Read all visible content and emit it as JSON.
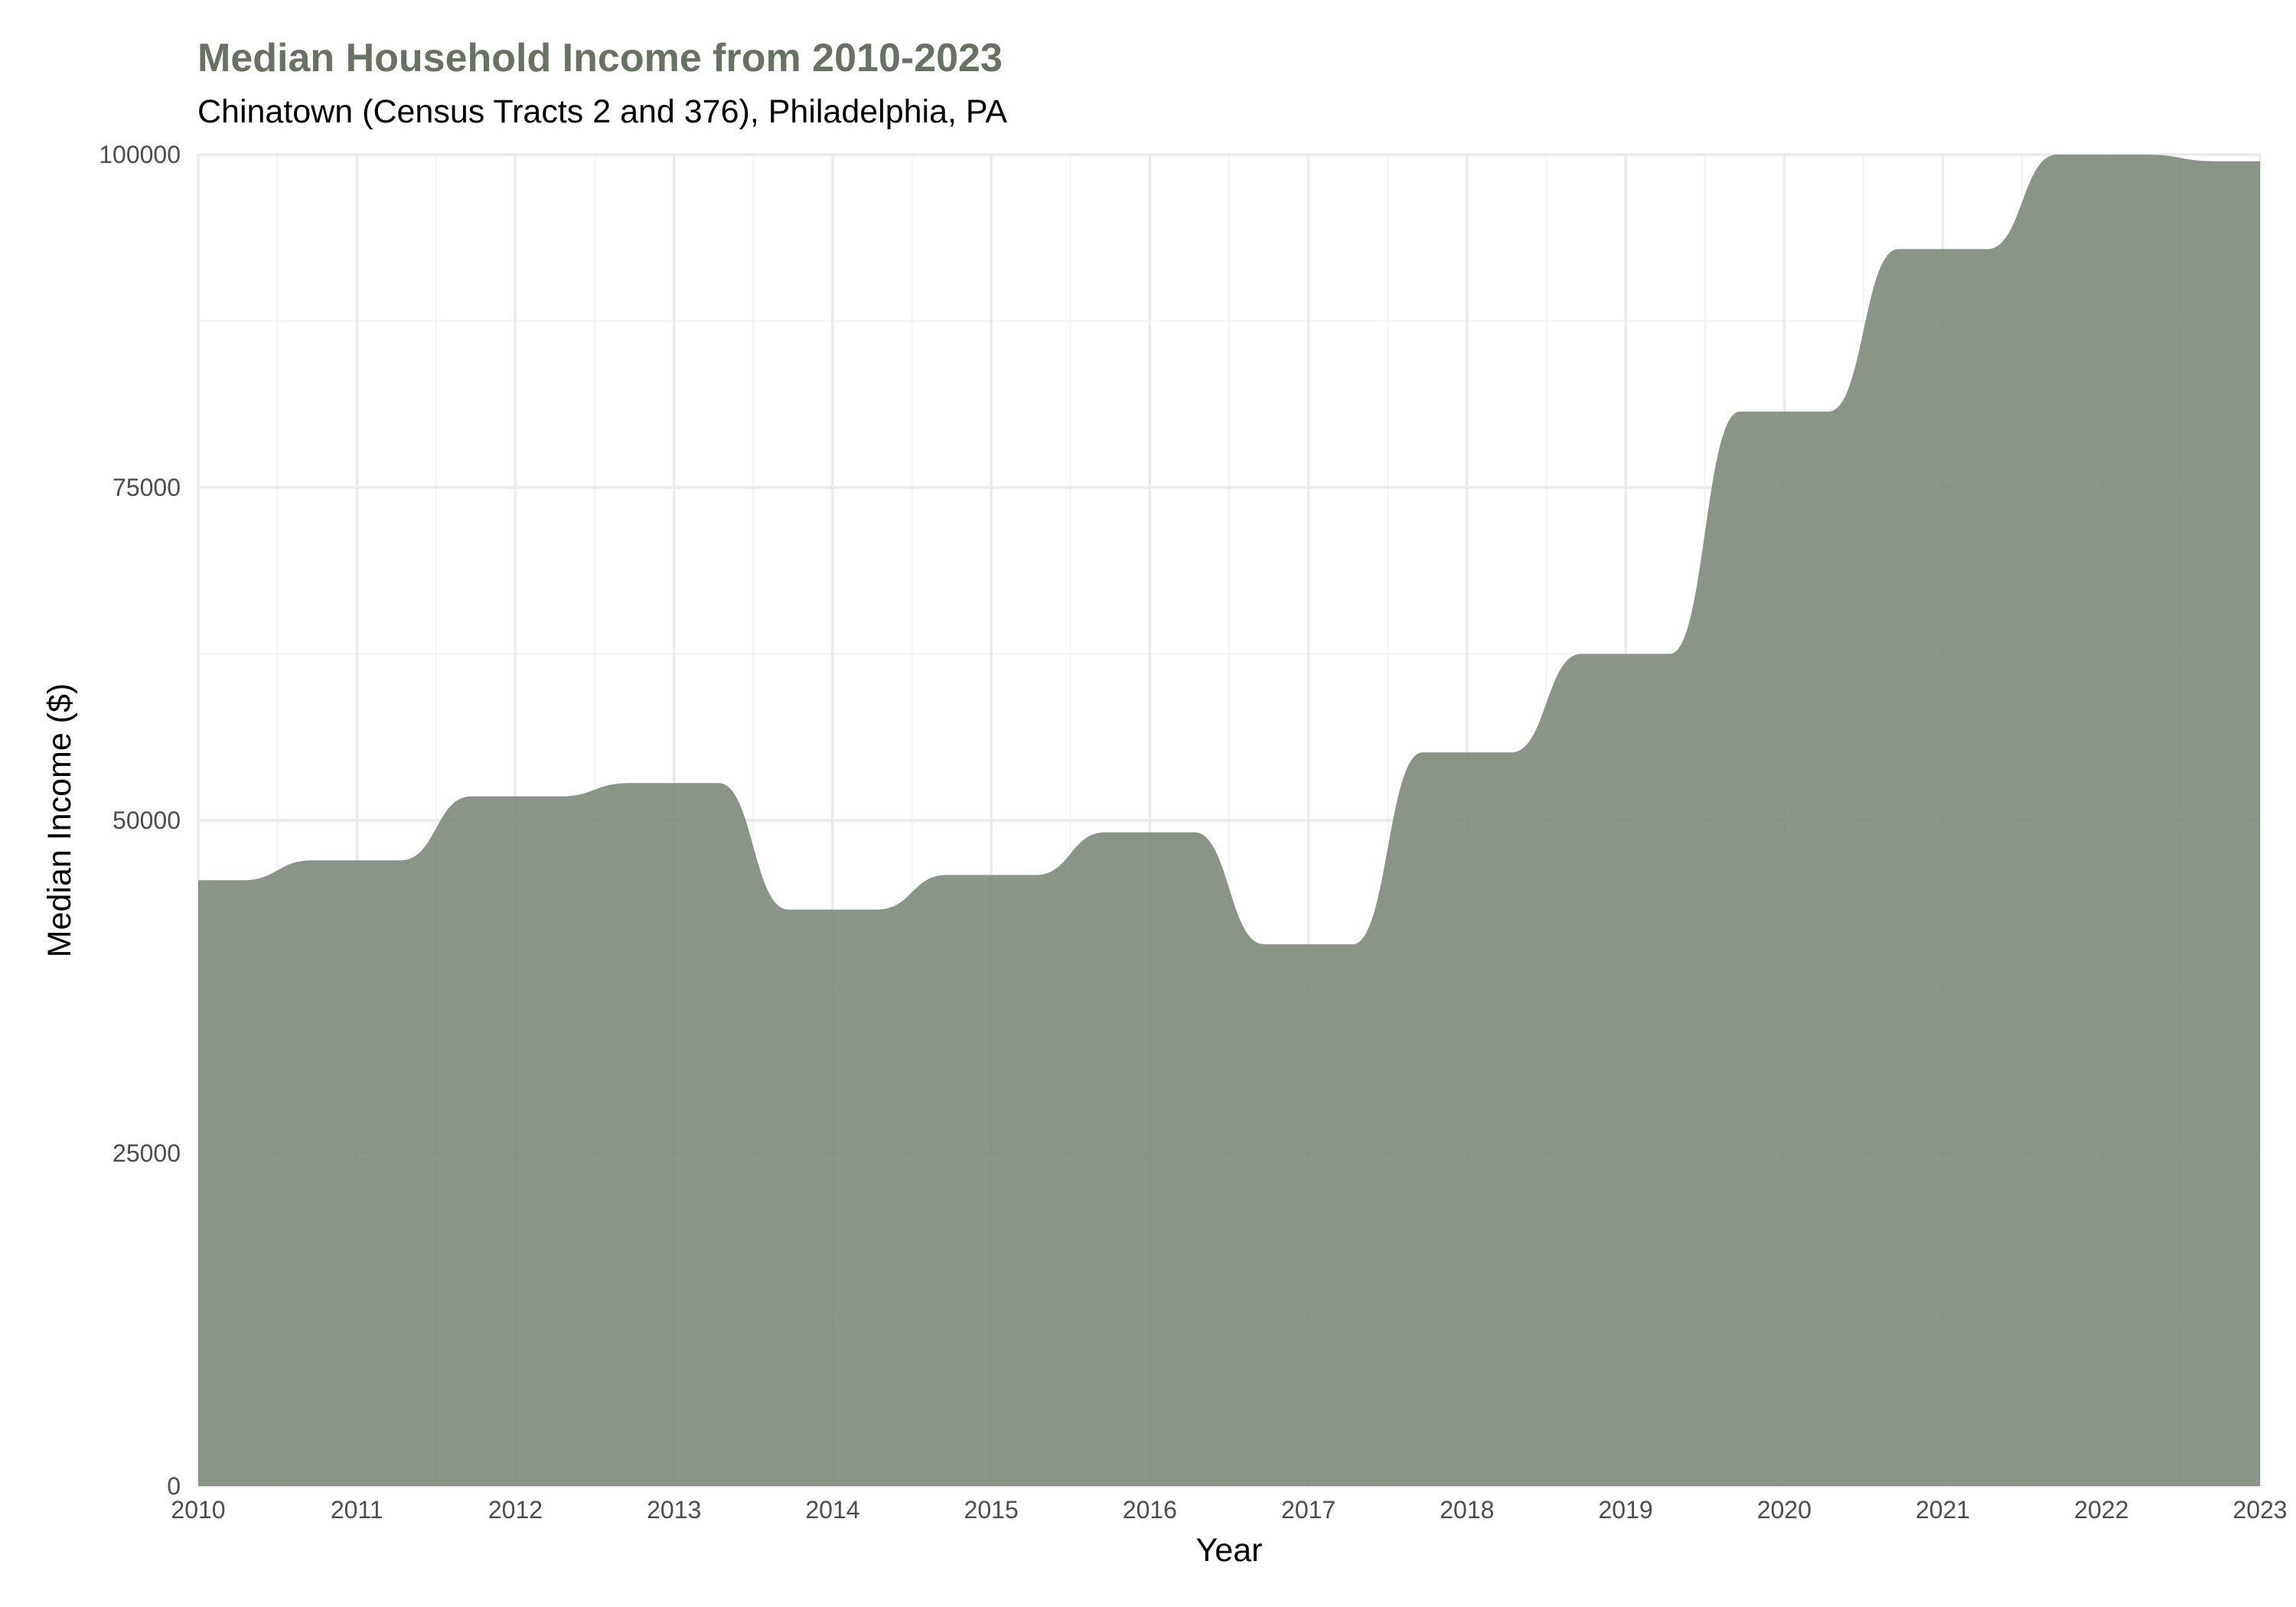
{
  "chart_data": {
    "type": "area",
    "title": "Median Household Income from 2010-2023",
    "subtitle": "Chinatown (Census Tracts 2 and 376), Philadelphia, PA",
    "xlabel": "Year",
    "ylabel": "Median Income ($)",
    "x": [
      2010,
      2011,
      2012,
      2013,
      2014,
      2015,
      2016,
      2017,
      2018,
      2019,
      2020,
      2021,
      2022,
      2023
    ],
    "values": [
      45500,
      47000,
      51800,
      52800,
      43300,
      45900,
      49100,
      40700,
      55100,
      62500,
      80700,
      92900,
      100000,
      99500
    ],
    "xlim": [
      2010,
      2023
    ],
    "ylim": [
      0,
      100000
    ],
    "x_ticks": [
      "2010",
      "2011",
      "2012",
      "2013",
      "2014",
      "2015",
      "2016",
      "2017",
      "2018",
      "2019",
      "2020",
      "2021",
      "2022",
      "2023"
    ],
    "y_ticks": [
      "0",
      "25000",
      "50000",
      "75000",
      "100000"
    ],
    "grid": true,
    "legend": "none",
    "colors": {
      "fill": "#7a8677",
      "title": "#677262",
      "grid_major": "#ebebeb",
      "grid_minor": "#f3f3f3"
    }
  }
}
